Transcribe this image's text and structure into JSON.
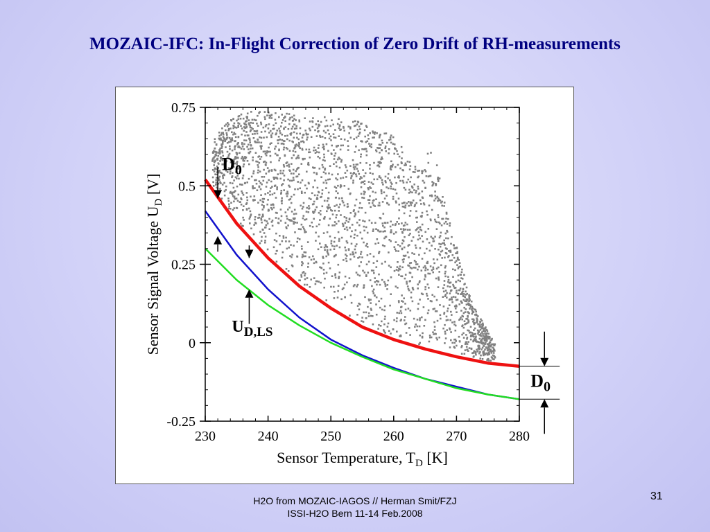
{
  "slide": {
    "title": "MOZAIC-IFC: In-Flight Correction of Zero Drift of RH-measurements",
    "footer_line1": "H2O from MOZAIC-IAGOS // Herman Smit/FZJ",
    "footer_line2": "ISSI-H2O Bern 11-14 Feb.2008",
    "page_number": "31"
  },
  "chart_data": {
    "type": "scatter",
    "title": "",
    "xlabel": "Sensor Temperature, T",
    "xlabel_sub": "D",
    "xlabel_unit": " [K]",
    "ylabel": "Sensor Signal Voltage U",
    "ylabel_sub": "D",
    "ylabel_unit": " [V]",
    "xlim": [
      230,
      280
    ],
    "ylim": [
      -0.25,
      0.75
    ],
    "xticks": [
      230,
      240,
      250,
      260,
      270,
      280
    ],
    "xtick_labels": [
      "230",
      "240",
      "250",
      "260",
      "270",
      "280"
    ],
    "yticks": [
      -0.25,
      0,
      0.25,
      0.5,
      0.75
    ],
    "ytick_labels": [
      "-0.25",
      "0",
      "0.25",
      "0.5",
      "0.75"
    ],
    "grid": false,
    "colors": {
      "scatter": "#808080",
      "red": "#ee1111",
      "blue": "#1111cc",
      "green": "#22dd22"
    },
    "scatter_region": {
      "x_range": [
        231,
        276
      ],
      "upper_envelope": [
        [
          231,
          0.65
        ],
        [
          234,
          0.72
        ],
        [
          236,
          0.74
        ],
        [
          240,
          0.74
        ],
        [
          245,
          0.73
        ],
        [
          250,
          0.72
        ],
        [
          254,
          0.71
        ],
        [
          256,
          0.69
        ],
        [
          258,
          0.68
        ],
        [
          260,
          0.66
        ],
        [
          262,
          0.6
        ],
        [
          264,
          0.55
        ],
        [
          266,
          0.64
        ],
        [
          268,
          0.45
        ],
        [
          270,
          0.3
        ],
        [
          272,
          0.15
        ],
        [
          274,
          0.07
        ],
        [
          276,
          0.0
        ]
      ],
      "lower_bound": "red_curve"
    },
    "series": [
      {
        "name": "",
        "color": "#ee1111",
        "x": [
          230,
          235,
          240,
          245,
          250,
          255,
          260,
          265,
          270,
          275,
          280
        ],
        "y": [
          0.52,
          0.38,
          0.27,
          0.18,
          0.11,
          0.05,
          0.01,
          -0.02,
          -0.045,
          -0.065,
          -0.075
        ]
      },
      {
        "name": "",
        "color": "#1111cc",
        "x": [
          230,
          235,
          240,
          245,
          250,
          255,
          260,
          265,
          270,
          275,
          280
        ],
        "y": [
          0.42,
          0.28,
          0.17,
          0.08,
          0.01,
          -0.04,
          -0.08,
          -0.115,
          -0.14,
          -0.165,
          -0.18
        ]
      },
      {
        "name": "",
        "color": "#22dd22",
        "x": [
          230,
          235,
          240,
          245,
          250,
          255,
          260,
          265,
          270,
          275,
          280
        ],
        "y": [
          0.3,
          0.2,
          0.12,
          0.055,
          0.0,
          -0.045,
          -0.085,
          -0.115,
          -0.145,
          -0.165,
          -0.18
        ]
      }
    ],
    "annotations": [
      {
        "id": "d0_left",
        "text": "D",
        "sub": "0",
        "x": 232,
        "y_from": 0.46,
        "y_to": 0.34
      },
      {
        "id": "ud_ls",
        "text": "U",
        "sub": "D,LS",
        "x": 237,
        "y_from": 0.27,
        "y_to": 0.17
      },
      {
        "id": "d0_right",
        "text": "D",
        "sub": "0",
        "x": 284,
        "y_from": -0.075,
        "y_to": -0.18
      }
    ]
  }
}
